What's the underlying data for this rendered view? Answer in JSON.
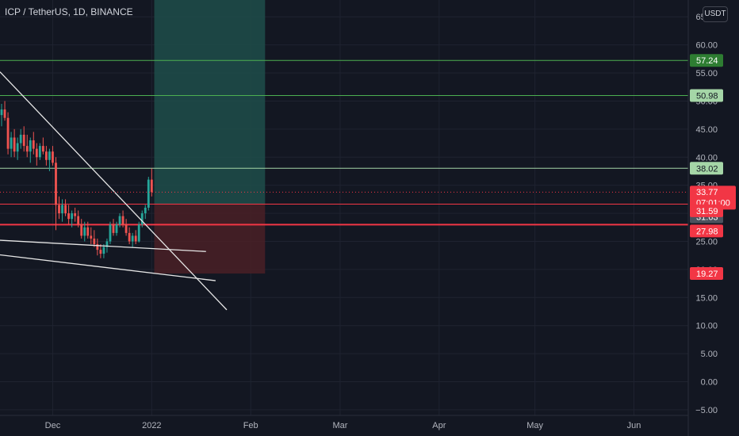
{
  "title": "ICP / TetherUS, 1D, BINANCE",
  "currency_button": "USDT",
  "colors": {
    "background": "#131722",
    "grid": "#1f2330",
    "up_candle": "#26a69a",
    "down_candle": "#ef5350",
    "profit_zone": "#1e4e4a",
    "loss_zone": "#4a2026",
    "green_level": "#4caf50",
    "red_level": "#f23645",
    "trendline": "#e6e6e6"
  },
  "chart_data": {
    "type": "candlestick",
    "symbol": "ICP / TetherUS",
    "timeframe": "1D",
    "exchange": "BINANCE",
    "y_axis": {
      "ticks": [
        "65.00",
        "60.00",
        "55.00",
        "50.00",
        "45.00",
        "40.00",
        "35.00",
        "30.00",
        "25.00",
        "20.00",
        "15.00",
        "10.00",
        "5.00",
        "0.00",
        "−5.00"
      ],
      "range": [
        -6,
        68
      ]
    },
    "x_axis": {
      "ticks": [
        {
          "label": "Dec",
          "day": 0
        },
        {
          "label": "2022",
          "day": 31
        },
        {
          "label": "Feb",
          "day": 62
        },
        {
          "label": "Mar",
          "day": 90
        },
        {
          "label": "Apr",
          "day": 121
        },
        {
          "label": "May",
          "day": 151
        },
        {
          "label": "Jun",
          "day": 182
        }
      ],
      "range_days": [
        -16.5,
        199
      ]
    },
    "horizontal_levels": [
      {
        "value": 57.24,
        "label": "57.24",
        "kind": "green"
      },
      {
        "value": 50.98,
        "label": "50.98",
        "kind": "green"
      },
      {
        "value": 38.02,
        "label": "38.02",
        "kind": "light-green"
      },
      {
        "value": 31.63,
        "label": "31.63",
        "kind": "red-thin"
      },
      {
        "value": 27.98,
        "label": "27.98",
        "kind": "red"
      }
    ],
    "price_labels": [
      {
        "value": 57.24,
        "text": "57.24",
        "kind": "green"
      },
      {
        "value": 50.98,
        "text": "50.98",
        "kind": "light-green"
      },
      {
        "value": 38.02,
        "text": "38.02",
        "kind": "light-green"
      },
      {
        "value": 33.77,
        "text": "33.77",
        "countdown": "07:01:00",
        "kind": "current"
      },
      {
        "value": 31.63,
        "text": "31.63",
        "kind": "grey"
      },
      {
        "value": 31.59,
        "text": "31.59",
        "kind": "red"
      },
      {
        "value": 27.98,
        "text": "27.98",
        "kind": "red"
      },
      {
        "value": 19.27,
        "text": "19.27",
        "kind": "red"
      }
    ],
    "position_tool": {
      "entry": 31.63,
      "target_top": 68,
      "stop": 19.27,
      "start_day": 31.8,
      "end_day": 66.5
    },
    "trendlines": [
      {
        "x1": -16.5,
        "y1": 55.2,
        "x2": 54.5,
        "y2": 12.8
      },
      {
        "x1": -16.5,
        "y1": 25.2,
        "x2": 48,
        "y2": 23.2
      },
      {
        "x1": -16.5,
        "y1": 22.6,
        "x2": 51,
        "y2": 18.0
      }
    ],
    "current_price": 33.77,
    "candles": [
      {
        "d": -16,
        "o": 47.5,
        "h": 49.5,
        "l": 45.5,
        "c": 48.5
      },
      {
        "d": -15,
        "o": 48.5,
        "h": 50.0,
        "l": 46.5,
        "c": 47.0
      },
      {
        "d": -14,
        "o": 47.0,
        "h": 48.0,
        "l": 40.5,
        "c": 41.5
      },
      {
        "d": -13,
        "o": 41.5,
        "h": 44.5,
        "l": 40.0,
        "c": 43.5
      },
      {
        "d": -12,
        "o": 43.5,
        "h": 45.0,
        "l": 40.0,
        "c": 41.0
      },
      {
        "d": -11,
        "o": 41.0,
        "h": 43.5,
        "l": 39.5,
        "c": 42.5
      },
      {
        "d": -10,
        "o": 42.5,
        "h": 45.0,
        "l": 41.5,
        "c": 44.0
      },
      {
        "d": -9,
        "o": 44.0,
        "h": 45.5,
        "l": 41.0,
        "c": 42.0
      },
      {
        "d": -8,
        "o": 42.0,
        "h": 44.0,
        "l": 40.0,
        "c": 41.0
      },
      {
        "d": -7,
        "o": 41.0,
        "h": 43.5,
        "l": 39.0,
        "c": 43.0
      },
      {
        "d": -6,
        "o": 43.0,
        "h": 44.5,
        "l": 40.5,
        "c": 41.5
      },
      {
        "d": -5,
        "o": 41.5,
        "h": 42.5,
        "l": 38.5,
        "c": 40.0
      },
      {
        "d": -4,
        "o": 40.0,
        "h": 42.5,
        "l": 39.5,
        "c": 42.0
      },
      {
        "d": -3,
        "o": 42.0,
        "h": 43.5,
        "l": 40.5,
        "c": 41.0
      },
      {
        "d": -2,
        "o": 41.0,
        "h": 42.0,
        "l": 38.5,
        "c": 39.5
      },
      {
        "d": -1,
        "o": 39.5,
        "h": 41.5,
        "l": 37.5,
        "c": 41.0
      },
      {
        "d": 0,
        "o": 41.0,
        "h": 42.0,
        "l": 38.5,
        "c": 39.0
      },
      {
        "d": 1,
        "o": 39.0,
        "h": 40.0,
        "l": 27.0,
        "c": 31.5
      },
      {
        "d": 2,
        "o": 31.5,
        "h": 33.0,
        "l": 29.0,
        "c": 30.0
      },
      {
        "d": 3,
        "o": 30.0,
        "h": 32.5,
        "l": 28.5,
        "c": 31.5
      },
      {
        "d": 4,
        "o": 31.5,
        "h": 32.5,
        "l": 29.5,
        "c": 30.0
      },
      {
        "d": 5,
        "o": 30.0,
        "h": 31.5,
        "l": 28.0,
        "c": 29.0
      },
      {
        "d": 6,
        "o": 29.0,
        "h": 30.5,
        "l": 27.5,
        "c": 30.0
      },
      {
        "d": 7,
        "o": 30.0,
        "h": 31.0,
        "l": 28.5,
        "c": 29.5
      },
      {
        "d": 8,
        "o": 29.5,
        "h": 30.5,
        "l": 27.5,
        "c": 28.0
      },
      {
        "d": 9,
        "o": 28.0,
        "h": 29.0,
        "l": 25.5,
        "c": 26.0
      },
      {
        "d": 10,
        "o": 26.0,
        "h": 28.5,
        "l": 25.0,
        "c": 27.5
      },
      {
        "d": 11,
        "o": 27.5,
        "h": 28.5,
        "l": 25.5,
        "c": 26.0
      },
      {
        "d": 12,
        "o": 26.0,
        "h": 27.5,
        "l": 24.5,
        "c": 25.5
      },
      {
        "d": 13,
        "o": 25.5,
        "h": 27.0,
        "l": 24.0,
        "c": 24.5
      },
      {
        "d": 14,
        "o": 24.5,
        "h": 25.5,
        "l": 22.5,
        "c": 23.5
      },
      {
        "d": 15,
        "o": 23.5,
        "h": 24.5,
        "l": 22.0,
        "c": 22.8
      },
      {
        "d": 16,
        "o": 22.8,
        "h": 24.5,
        "l": 22.0,
        "c": 24.0
      },
      {
        "d": 17,
        "o": 24.0,
        "h": 25.5,
        "l": 23.0,
        "c": 25.0
      },
      {
        "d": 18,
        "o": 25.0,
        "h": 28.5,
        "l": 24.5,
        "c": 28.0
      },
      {
        "d": 19,
        "o": 28.0,
        "h": 29.0,
        "l": 26.0,
        "c": 26.5
      },
      {
        "d": 20,
        "o": 26.5,
        "h": 28.5,
        "l": 26.0,
        "c": 28.0
      },
      {
        "d": 21,
        "o": 28.0,
        "h": 30.0,
        "l": 27.5,
        "c": 29.5
      },
      {
        "d": 22,
        "o": 29.5,
        "h": 30.5,
        "l": 27.5,
        "c": 28.0
      },
      {
        "d": 23,
        "o": 28.0,
        "h": 29.0,
        "l": 26.0,
        "c": 26.5
      },
      {
        "d": 24,
        "o": 26.5,
        "h": 27.5,
        "l": 24.5,
        "c": 25.0
      },
      {
        "d": 25,
        "o": 25.0,
        "h": 26.5,
        "l": 24.0,
        "c": 26.0
      },
      {
        "d": 26,
        "o": 26.0,
        "h": 27.0,
        "l": 24.5,
        "c": 25.0
      },
      {
        "d": 27,
        "o": 25.0,
        "h": 28.5,
        "l": 24.8,
        "c": 28.0
      },
      {
        "d": 28,
        "o": 28.0,
        "h": 30.5,
        "l": 27.5,
        "c": 30.0
      },
      {
        "d": 29,
        "o": 30.0,
        "h": 31.5,
        "l": 29.0,
        "c": 31.0
      },
      {
        "d": 30,
        "o": 31.0,
        "h": 36.5,
        "l": 30.5,
        "c": 36.0
      },
      {
        "d": 31,
        "o": 36.0,
        "h": 38.0,
        "l": 33.0,
        "c": 33.77
      }
    ]
  }
}
